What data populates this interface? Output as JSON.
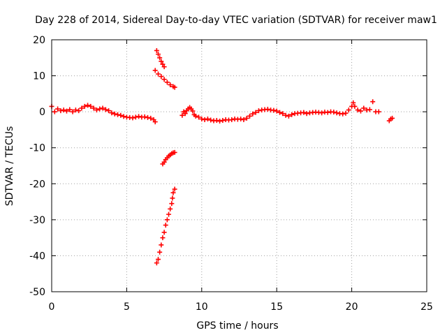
{
  "chart_data": {
    "type": "scatter",
    "title": "Day 228 of 2014, Sidereal Day-to-day VTEC variation (SDTVAR) for receiver maw1",
    "xlabel": "GPS time / hours",
    "ylabel": "SDTVAR / TECUs",
    "xlim": [
      0,
      25
    ],
    "ylim": [
      -50,
      20
    ],
    "xticks": [
      0,
      5,
      10,
      15,
      20,
      25
    ],
    "yticks": [
      -50,
      -40,
      -30,
      -20,
      -10,
      0,
      10,
      20
    ],
    "xtick_labels": [
      "0",
      "5",
      "10",
      "15",
      "20",
      "25"
    ],
    "ytick_labels": [
      "-50",
      "-40",
      "-30",
      "-20",
      "-10",
      "0",
      "10",
      "20"
    ],
    "grid": true,
    "marker": "plus",
    "marker_color": "#ff0000",
    "series": [
      {
        "name": "main-trace",
        "points": [
          [
            0.0,
            1.5
          ],
          [
            0.2,
            0.0
          ],
          [
            0.4,
            0.8
          ],
          [
            0.6,
            0.3
          ],
          [
            0.8,
            0.5
          ],
          [
            1.0,
            0.2
          ],
          [
            1.2,
            0.6
          ],
          [
            1.4,
            0.0
          ],
          [
            1.6,
            0.5
          ],
          [
            1.8,
            0.3
          ],
          [
            2.0,
            1.0
          ],
          [
            2.2,
            1.5
          ],
          [
            2.4,
            1.8
          ],
          [
            2.6,
            1.5
          ],
          [
            2.8,
            1.0
          ],
          [
            3.0,
            0.5
          ],
          [
            3.2,
            0.8
          ],
          [
            3.4,
            1.0
          ],
          [
            3.6,
            0.6
          ],
          [
            3.8,
            0.3
          ],
          [
            4.0,
            -0.3
          ],
          [
            4.2,
            -0.6
          ],
          [
            4.4,
            -0.8
          ],
          [
            4.6,
            -1.0
          ],
          [
            4.8,
            -1.3
          ],
          [
            5.0,
            -1.5
          ],
          [
            5.2,
            -1.6
          ],
          [
            5.4,
            -1.7
          ],
          [
            5.6,
            -1.5
          ],
          [
            5.8,
            -1.3
          ],
          [
            6.0,
            -1.5
          ],
          [
            6.2,
            -1.4
          ],
          [
            6.4,
            -1.6
          ],
          [
            6.6,
            -1.8
          ],
          [
            6.8,
            -2.2
          ],
          [
            6.9,
            -2.8
          ]
        ]
      },
      {
        "name": "upper-arc",
        "points": [
          [
            7.0,
            17.0
          ],
          [
            7.1,
            16.0
          ],
          [
            7.2,
            15.0
          ],
          [
            7.3,
            14.0
          ],
          [
            7.4,
            13.2
          ],
          [
            7.5,
            12.5
          ],
          [
            6.9,
            11.5
          ],
          [
            7.1,
            10.5
          ],
          [
            7.3,
            9.8
          ],
          [
            7.5,
            9.0
          ],
          [
            7.7,
            8.2
          ],
          [
            7.9,
            7.5
          ],
          [
            8.1,
            7.0
          ],
          [
            8.2,
            6.8
          ]
        ]
      },
      {
        "name": "mid-arc",
        "points": [
          [
            7.4,
            -14.5
          ],
          [
            7.5,
            -14.0
          ],
          [
            7.6,
            -13.3
          ],
          [
            7.7,
            -12.8
          ],
          [
            7.8,
            -12.3
          ],
          [
            7.9,
            -12.0
          ],
          [
            8.0,
            -11.6
          ],
          [
            8.1,
            -11.4
          ],
          [
            8.2,
            -11.3
          ]
        ]
      },
      {
        "name": "lower-arc",
        "points": [
          [
            7.0,
            -42.0
          ],
          [
            7.1,
            -41.0
          ],
          [
            7.2,
            -39.0
          ],
          [
            7.3,
            -37.0
          ],
          [
            7.4,
            -35.0
          ],
          [
            7.5,
            -33.5
          ],
          [
            7.6,
            -31.5
          ],
          [
            7.7,
            -30.0
          ],
          [
            7.8,
            -28.5
          ],
          [
            7.9,
            -27.0
          ],
          [
            8.0,
            -25.5
          ],
          [
            8.05,
            -24.0
          ],
          [
            8.1,
            -22.5
          ],
          [
            8.2,
            -21.5
          ]
        ]
      },
      {
        "name": "after-gap",
        "points": [
          [
            8.7,
            -1.0
          ],
          [
            8.8,
            0.0
          ],
          [
            8.9,
            -0.5
          ],
          [
            9.0,
            0.3
          ],
          [
            9.1,
            0.8
          ],
          [
            9.2,
            1.2
          ],
          [
            9.3,
            0.8
          ],
          [
            9.4,
            0.2
          ],
          [
            9.5,
            -0.8
          ],
          [
            9.6,
            -1.2
          ],
          [
            9.8,
            -1.5
          ],
          [
            10.0,
            -2.0
          ],
          [
            10.2,
            -2.2
          ],
          [
            10.4,
            -2.0
          ],
          [
            10.6,
            -2.3
          ],
          [
            10.8,
            -2.5
          ],
          [
            11.0,
            -2.4
          ],
          [
            11.2,
            -2.6
          ],
          [
            11.4,
            -2.4
          ],
          [
            11.6,
            -2.2
          ],
          [
            11.8,
            -2.3
          ],
          [
            12.0,
            -2.2
          ],
          [
            12.2,
            -2.0
          ],
          [
            12.4,
            -2.1
          ],
          [
            12.6,
            -2.0
          ],
          [
            12.8,
            -2.2
          ],
          [
            13.0,
            -1.8
          ],
          [
            13.2,
            -1.2
          ],
          [
            13.4,
            -0.6
          ],
          [
            13.6,
            -0.2
          ],
          [
            13.8,
            0.3
          ],
          [
            14.0,
            0.5
          ],
          [
            14.2,
            0.6
          ],
          [
            14.4,
            0.7
          ],
          [
            14.6,
            0.5
          ],
          [
            14.8,
            0.4
          ],
          [
            15.0,
            0.2
          ],
          [
            15.2,
            -0.2
          ],
          [
            15.4,
            -0.5
          ],
          [
            15.6,
            -1.0
          ],
          [
            15.8,
            -1.2
          ],
          [
            16.0,
            -0.8
          ],
          [
            16.2,
            -0.5
          ],
          [
            16.4,
            -0.4
          ],
          [
            16.6,
            -0.3
          ],
          [
            16.8,
            -0.2
          ],
          [
            17.0,
            -0.5
          ],
          [
            17.2,
            -0.3
          ],
          [
            17.4,
            -0.2
          ],
          [
            17.6,
            -0.1
          ],
          [
            17.8,
            -0.2
          ],
          [
            18.0,
            -0.3
          ],
          [
            18.2,
            -0.1
          ],
          [
            18.4,
            -0.2
          ],
          [
            18.6,
            0.0
          ],
          [
            18.8,
            -0.1
          ],
          [
            19.0,
            -0.3
          ],
          [
            19.2,
            -0.5
          ],
          [
            19.4,
            -0.6
          ],
          [
            19.6,
            -0.4
          ],
          [
            19.8,
            0.5
          ],
          [
            20.0,
            1.5
          ],
          [
            20.1,
            2.5
          ],
          [
            20.2,
            1.5
          ],
          [
            20.4,
            0.5
          ],
          [
            20.6,
            0.2
          ],
          [
            20.8,
            1.0
          ],
          [
            21.0,
            0.5
          ],
          [
            21.2,
            0.6
          ],
          [
            21.4,
            2.8
          ],
          [
            21.6,
            0.0
          ],
          [
            21.8,
            0.0
          ]
        ]
      },
      {
        "name": "tail",
        "points": [
          [
            22.5,
            -2.5
          ],
          [
            22.6,
            -2.0
          ],
          [
            22.7,
            -1.8
          ]
        ]
      }
    ]
  }
}
